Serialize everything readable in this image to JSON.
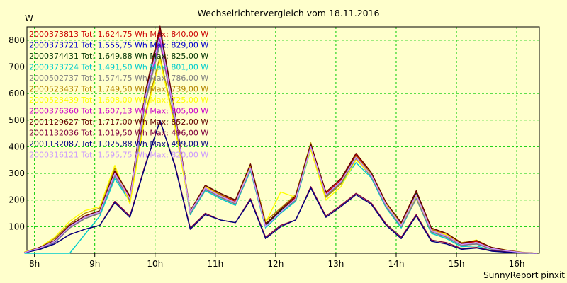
{
  "chart_data": {
    "type": "line",
    "title": "Wechselrichtervergleich vom 18.11.2016",
    "ylabel": "W",
    "credit": "SunnyReport pinxit",
    "xlim": [
      7.875,
      16.375
    ],
    "ylim": [
      0,
      850
    ],
    "grid": true,
    "legend_position": "top-left",
    "x_ticks": [
      {
        "value": 8,
        "label": "8h"
      },
      {
        "value": 9,
        "label": "9h"
      },
      {
        "value": 10,
        "label": "10h"
      },
      {
        "value": 11,
        "label": "11h"
      },
      {
        "value": 12,
        "label": "12h"
      },
      {
        "value": 13,
        "label": "13h"
      },
      {
        "value": 14,
        "label": "14h"
      },
      {
        "value": 15,
        "label": "15h"
      },
      {
        "value": 16,
        "label": "16h"
      }
    ],
    "y_ticks": [
      {
        "value": 100,
        "label": "100"
      },
      {
        "value": 200,
        "label": "200"
      },
      {
        "value": 300,
        "label": "300"
      },
      {
        "value": 400,
        "label": "400"
      },
      {
        "value": 500,
        "label": "500"
      },
      {
        "value": 600,
        "label": "600"
      },
      {
        "value": 700,
        "label": "700"
      },
      {
        "value": 800,
        "label": "800"
      }
    ],
    "x": [
      "07:50",
      "08:05",
      "08:20",
      "08:35",
      "08:50",
      "09:05",
      "09:20",
      "09:35",
      "09:50",
      "10:05",
      "10:20",
      "10:35",
      "10:50",
      "11:05",
      "11:20",
      "11:35",
      "11:50",
      "12:05",
      "12:20",
      "12:35",
      "12:50",
      "13:05",
      "13:20",
      "13:35",
      "13:50",
      "14:05",
      "14:20",
      "14:35",
      "14:50",
      "15:05",
      "15:20",
      "15:35",
      "15:50",
      "16:05",
      "16:20"
    ],
    "series": [
      {
        "name": "2000373813 Tot: 1.624,75 Wh Max: 840,00 W",
        "color": "#cc0000",
        "values": [
          3,
          20,
          45,
          100,
          135,
          155,
          305,
          210,
          590,
          840,
          520,
          155,
          250,
          220,
          195,
          330,
          105,
          160,
          210,
          405,
          225,
          275,
          370,
          300,
          185,
          110,
          230,
          90,
          70,
          35,
          45,
          20,
          10,
          3,
          0
        ]
      },
      {
        "name": "2000373721 Tot: 1.555,75 Wh Max: 829,00 W",
        "color": "#0000cc",
        "values": [
          3,
          18,
          40,
          95,
          130,
          150,
          290,
          200,
          570,
          829,
          500,
          150,
          240,
          210,
          185,
          315,
          100,
          155,
          200,
          400,
          215,
          265,
          355,
          290,
          175,
          100,
          215,
          80,
          60,
          30,
          35,
          15,
          8,
          2,
          0
        ]
      },
      {
        "name": "2000374431 Tot: 1.649,88 Wh Max: 825,00 W",
        "color": "#003300",
        "values": [
          3,
          20,
          45,
          100,
          135,
          155,
          300,
          205,
          585,
          825,
          515,
          155,
          245,
          215,
          190,
          325,
          105,
          160,
          205,
          400,
          220,
          270,
          365,
          295,
          180,
          105,
          225,
          85,
          65,
          33,
          40,
          18,
          9,
          3,
          0
        ]
      },
      {
        "name": "2000373724 Tot: 1.491,50 Wh Max: 801,00 W",
        "color": "#00cccc",
        "values": [
          0,
          0,
          0,
          0,
          70,
          140,
          280,
          195,
          560,
          801,
          495,
          145,
          235,
          205,
          180,
          310,
          95,
          150,
          195,
          390,
          210,
          260,
          340,
          285,
          170,
          95,
          205,
          75,
          55,
          25,
          28,
          10,
          5,
          1,
          0
        ]
      },
      {
        "name": "2000502737 Tot: 1.574,75 Wh Max: 786,00 W",
        "color": "#808080",
        "values": [
          3,
          18,
          42,
          95,
          130,
          150,
          290,
          200,
          560,
          786,
          505,
          150,
          240,
          210,
          185,
          315,
          100,
          155,
          200,
          395,
          215,
          265,
          355,
          290,
          175,
          100,
          205,
          80,
          60,
          30,
          35,
          15,
          8,
          2,
          0
        ]
      },
      {
        "name": "2000523437 Tot: 1.749,50 Wh Max: 739,00 W",
        "color": "#b38600",
        "values": [
          5,
          22,
          55,
          110,
          150,
          170,
          320,
          190,
          520,
          739,
          480,
          160,
          255,
          220,
          200,
          335,
          120,
          170,
          220,
          415,
          210,
          260,
          365,
          300,
          190,
          110,
          220,
          90,
          75,
          40,
          48,
          22,
          12,
          4,
          0
        ]
      },
      {
        "name": "2000523439 Tot: 1.608,00 Wh Max: 725,00 W",
        "color": "#ffff00",
        "values": [
          5,
          22,
          60,
          120,
          160,
          175,
          330,
          185,
          510,
          725,
          470,
          155,
          250,
          215,
          190,
          330,
          115,
          230,
          210,
          390,
          200,
          250,
          350,
          295,
          185,
          105,
          215,
          85,
          70,
          38,
          50,
          20,
          10,
          3,
          0
        ]
      },
      {
        "name": "2000376360 Tot: 1.607,13 Wh Max: 805,00 W",
        "color": "#cc00cc",
        "values": [
          3,
          20,
          45,
          100,
          135,
          155,
          300,
          205,
          580,
          805,
          510,
          155,
          245,
          215,
          190,
          320,
          100,
          155,
          205,
          400,
          220,
          270,
          360,
          295,
          180,
          105,
          220,
          85,
          65,
          33,
          40,
          18,
          9,
          3,
          0
        ]
      },
      {
        "name": "2001129627 Tot: 1.717,00 Wh Max: 852,00 W",
        "color": "#660000",
        "values": [
          3,
          22,
          48,
          105,
          140,
          160,
          310,
          215,
          600,
          852,
          525,
          158,
          255,
          225,
          200,
          335,
          110,
          165,
          215,
          410,
          230,
          280,
          375,
          305,
          190,
          115,
          235,
          95,
          75,
          38,
          48,
          22,
          11,
          3,
          0
        ]
      },
      {
        "name": "2001132036 Tot: 1.019,50 Wh Max: 496,00 W",
        "color": "#800040",
        "values": [
          2,
          15,
          35,
          70,
          90,
          105,
          195,
          140,
          330,
          496,
          330,
          95,
          150,
          125,
          115,
          205,
          60,
          105,
          125,
          250,
          140,
          180,
          225,
          190,
          110,
          60,
          145,
          50,
          40,
          18,
          22,
          10,
          5,
          1,
          0
        ]
      },
      {
        "name": "2001132087 Tot: 1.025,88 Wh Max: 499,00 W",
        "color": "#000080",
        "values": [
          2,
          14,
          35,
          70,
          90,
          105,
          190,
          135,
          325,
          499,
          325,
          90,
          145,
          125,
          115,
          200,
          55,
          100,
          125,
          245,
          135,
          175,
          220,
          185,
          105,
          55,
          140,
          45,
          35,
          15,
          20,
          8,
          4,
          1,
          0
        ]
      },
      {
        "name": "2000316121 Tot: 1.595,75 Wh Max: 820,00 W",
        "color": "#cc99ff",
        "values": [
          3,
          20,
          45,
          100,
          135,
          155,
          300,
          205,
          580,
          820,
          510,
          155,
          245,
          215,
          190,
          320,
          100,
          155,
          205,
          400,
          220,
          270,
          360,
          295,
          180,
          105,
          220,
          85,
          65,
          33,
          40,
          18,
          9,
          3,
          0
        ]
      }
    ]
  }
}
